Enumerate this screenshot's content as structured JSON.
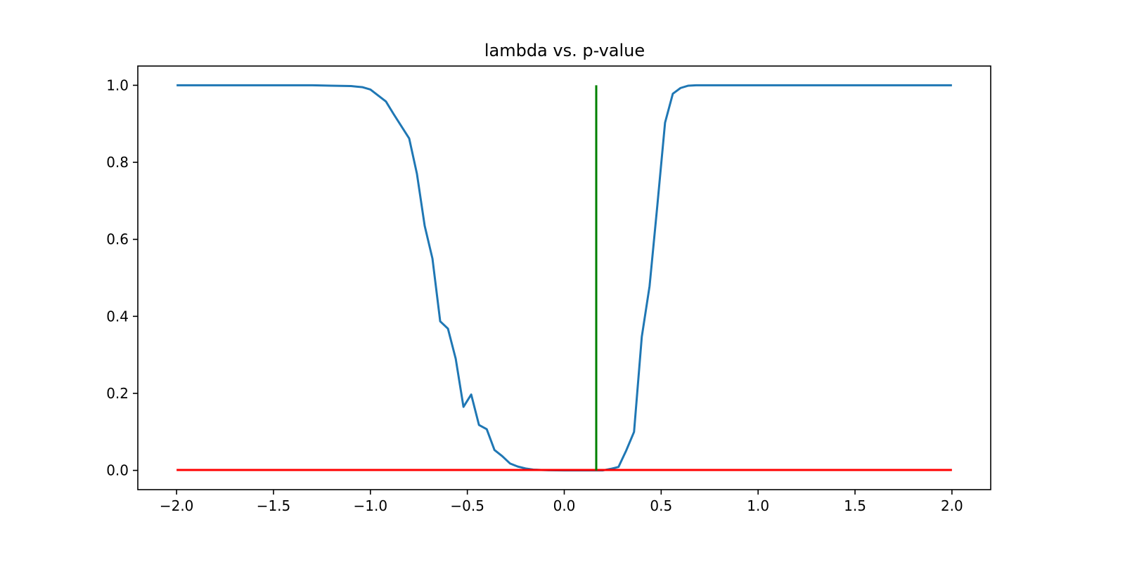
{
  "chart_data": {
    "type": "line",
    "title": "lambda vs. p-value",
    "xlabel": "",
    "ylabel": "",
    "xlim": [
      -2.2,
      2.2
    ],
    "ylim": [
      -0.05,
      1.05
    ],
    "x_ticks": [
      -2.0,
      -1.5,
      -1.0,
      -0.5,
      0.0,
      0.5,
      1.0,
      1.5,
      2.0
    ],
    "x_tick_labels": [
      "−2.0",
      "−1.5",
      "−1.0",
      "−0.5",
      "0.0",
      "0.5",
      "1.0",
      "1.5",
      "2.0"
    ],
    "y_ticks": [
      0.0,
      0.2,
      0.4,
      0.6,
      0.8,
      1.0
    ],
    "y_tick_labels": [
      "0.0",
      "0.2",
      "0.4",
      "0.6",
      "0.8",
      "1.0"
    ],
    "grid": false,
    "legend": "none",
    "series": [
      {
        "color": "#1f77b4",
        "x": [
          -2.0,
          -1.5,
          -1.3,
          -1.2,
          -1.1,
          -1.04,
          -1.0,
          -0.92,
          -0.88,
          -0.8,
          -0.76,
          -0.72,
          -0.68,
          -0.64,
          -0.6,
          -0.56,
          -0.52,
          -0.48,
          -0.44,
          -0.4,
          -0.36,
          -0.32,
          -0.28,
          -0.24,
          -0.2,
          -0.16,
          -0.12,
          -0.08,
          -0.04,
          0.0,
          0.04,
          0.08,
          0.12,
          0.16,
          0.2,
          0.24,
          0.28,
          0.32,
          0.36,
          0.4,
          0.44,
          0.48,
          0.52,
          0.56,
          0.6,
          0.64,
          0.68,
          0.72,
          0.8,
          1.0,
          1.5,
          2.0
        ],
        "y": [
          1.0,
          1.0,
          1.0,
          0.999,
          0.998,
          0.995,
          0.989,
          0.958,
          0.925,
          0.862,
          0.77,
          0.635,
          0.55,
          0.387,
          0.368,
          0.29,
          0.165,
          0.197,
          0.118,
          0.107,
          0.053,
          0.037,
          0.018,
          0.01,
          0.005,
          0.002,
          0.001,
          0.0005,
          0.0002,
          0.0,
          0.0,
          0.0,
          0.0,
          0.0,
          0.0,
          0.004,
          0.009,
          0.052,
          0.1,
          0.347,
          0.478,
          0.687,
          0.903,
          0.978,
          0.993,
          0.999,
          1.0,
          1.0,
          1.0,
          1.0,
          1.0,
          1.0
        ]
      },
      {
        "color": "#ff0000",
        "x": [
          -2.0,
          2.0
        ],
        "y": [
          0.001,
          0.001
        ]
      },
      {
        "color": "#008000",
        "x": [
          0.165,
          0.165
        ],
        "y": [
          0.0,
          1.0
        ]
      }
    ]
  },
  "colors": {
    "axes": "#000000",
    "background": "#ffffff"
  }
}
